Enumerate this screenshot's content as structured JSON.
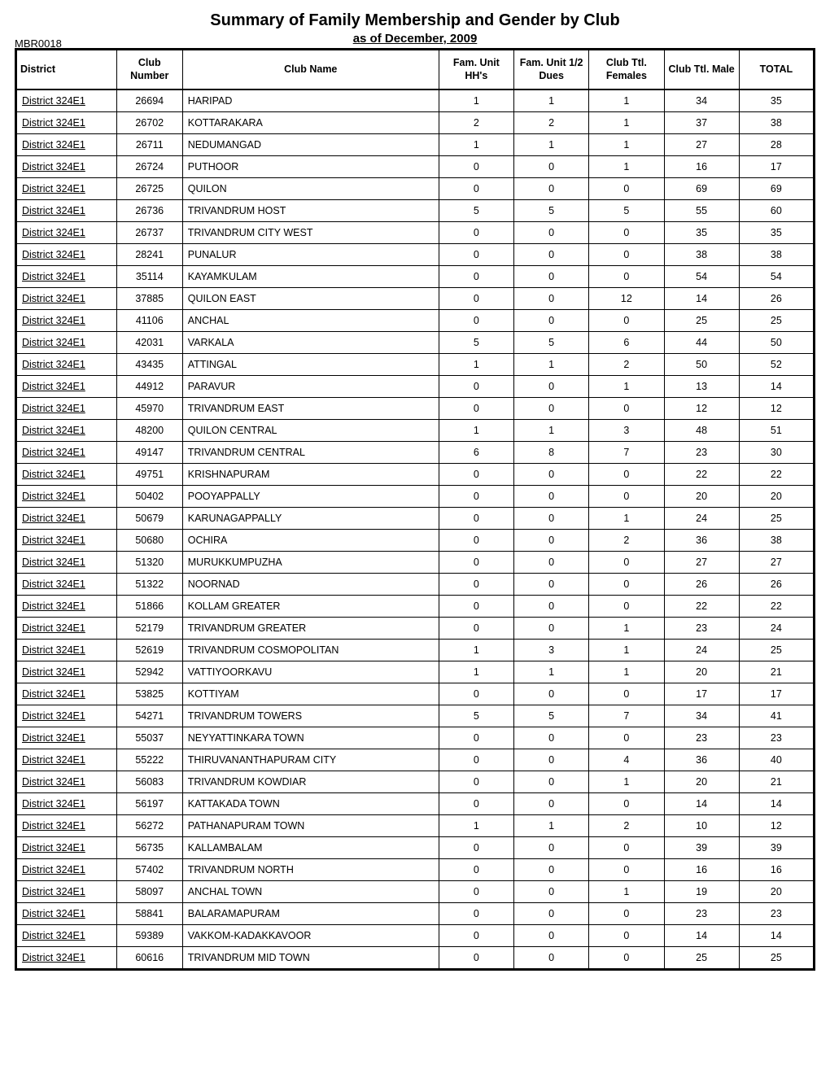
{
  "report": {
    "title": "Summary of Family Membership and Gender by Club",
    "id": "MBR0018",
    "as_of": "as of December, 2009"
  },
  "table": {
    "columns": [
      "District",
      "Club Number",
      "Club Name",
      "Fam. Unit HH's",
      "Fam. Unit 1/2 Dues",
      "Club Ttl. Females",
      "Club Ttl. Male",
      "TOTAL"
    ],
    "rows": [
      [
        "District 324E1",
        "26694",
        "HARIPAD",
        "1",
        "1",
        "1",
        "34",
        "35"
      ],
      [
        "District 324E1",
        "26702",
        "KOTTARAKARA",
        "2",
        "2",
        "1",
        "37",
        "38"
      ],
      [
        "District 324E1",
        "26711",
        "NEDUMANGAD",
        "1",
        "1",
        "1",
        "27",
        "28"
      ],
      [
        "District 324E1",
        "26724",
        "PUTHOOR",
        "0",
        "0",
        "1",
        "16",
        "17"
      ],
      [
        "District 324E1",
        "26725",
        "QUILON",
        "0",
        "0",
        "0",
        "69",
        "69"
      ],
      [
        "District 324E1",
        "26736",
        "TRIVANDRUM HOST",
        "5",
        "5",
        "5",
        "55",
        "60"
      ],
      [
        "District 324E1",
        "26737",
        "TRIVANDRUM CITY WEST",
        "0",
        "0",
        "0",
        "35",
        "35"
      ],
      [
        "District 324E1",
        "28241",
        "PUNALUR",
        "0",
        "0",
        "0",
        "38",
        "38"
      ],
      [
        "District 324E1",
        "35114",
        "KAYAMKULAM",
        "0",
        "0",
        "0",
        "54",
        "54"
      ],
      [
        "District 324E1",
        "37885",
        "QUILON EAST",
        "0",
        "0",
        "12",
        "14",
        "26"
      ],
      [
        "District 324E1",
        "41106",
        "ANCHAL",
        "0",
        "0",
        "0",
        "25",
        "25"
      ],
      [
        "District 324E1",
        "42031",
        "VARKALA",
        "5",
        "5",
        "6",
        "44",
        "50"
      ],
      [
        "District 324E1",
        "43435",
        "ATTINGAL",
        "1",
        "1",
        "2",
        "50",
        "52"
      ],
      [
        "District 324E1",
        "44912",
        "PARAVUR",
        "0",
        "0",
        "1",
        "13",
        "14"
      ],
      [
        "District 324E1",
        "45970",
        "TRIVANDRUM EAST",
        "0",
        "0",
        "0",
        "12",
        "12"
      ],
      [
        "District 324E1",
        "48200",
        "QUILON CENTRAL",
        "1",
        "1",
        "3",
        "48",
        "51"
      ],
      [
        "District 324E1",
        "49147",
        "TRIVANDRUM CENTRAL",
        "6",
        "8",
        "7",
        "23",
        "30"
      ],
      [
        "District 324E1",
        "49751",
        "KRISHNAPURAM",
        "0",
        "0",
        "0",
        "22",
        "22"
      ],
      [
        "District 324E1",
        "50402",
        "POOYAPPALLY",
        "0",
        "0",
        "0",
        "20",
        "20"
      ],
      [
        "District 324E1",
        "50679",
        "KARUNAGAPPALLY",
        "0",
        "0",
        "1",
        "24",
        "25"
      ],
      [
        "District 324E1",
        "50680",
        "OCHIRA",
        "0",
        "0",
        "2",
        "36",
        "38"
      ],
      [
        "District 324E1",
        "51320",
        "MURUKKUMPUZHA",
        "0",
        "0",
        "0",
        "27",
        "27"
      ],
      [
        "District 324E1",
        "51322",
        "NOORNAD",
        "0",
        "0",
        "0",
        "26",
        "26"
      ],
      [
        "District 324E1",
        "51866",
        "KOLLAM GREATER",
        "0",
        "0",
        "0",
        "22",
        "22"
      ],
      [
        "District 324E1",
        "52179",
        "TRIVANDRUM GREATER",
        "0",
        "0",
        "1",
        "23",
        "24"
      ],
      [
        "District 324E1",
        "52619",
        "TRIVANDRUM COSMOPOLITAN",
        "1",
        "3",
        "1",
        "24",
        "25"
      ],
      [
        "District 324E1",
        "52942",
        "VATTIYOORKAVU",
        "1",
        "1",
        "1",
        "20",
        "21"
      ],
      [
        "District 324E1",
        "53825",
        "KOTTIYAM",
        "0",
        "0",
        "0",
        "17",
        "17"
      ],
      [
        "District 324E1",
        "54271",
        "TRIVANDRUM TOWERS",
        "5",
        "5",
        "7",
        "34",
        "41"
      ],
      [
        "District 324E1",
        "55037",
        "NEYYATTINKARA TOWN",
        "0",
        "0",
        "0",
        "23",
        "23"
      ],
      [
        "District 324E1",
        "55222",
        "THIRUVANANTHAPURAM CITY",
        "0",
        "0",
        "4",
        "36",
        "40"
      ],
      [
        "District 324E1",
        "56083",
        "TRIVANDRUM KOWDIAR",
        "0",
        "0",
        "1",
        "20",
        "21"
      ],
      [
        "District 324E1",
        "56197",
        "KATTAKADA TOWN",
        "0",
        "0",
        "0",
        "14",
        "14"
      ],
      [
        "District 324E1",
        "56272",
        "PATHANAPURAM TOWN",
        "1",
        "1",
        "2",
        "10",
        "12"
      ],
      [
        "District 324E1",
        "56735",
        "KALLAMBALAM",
        "0",
        "0",
        "0",
        "39",
        "39"
      ],
      [
        "District 324E1",
        "57402",
        "TRIVANDRUM NORTH",
        "0",
        "0",
        "0",
        "16",
        "16"
      ],
      [
        "District 324E1",
        "58097",
        "ANCHAL TOWN",
        "0",
        "0",
        "1",
        "19",
        "20"
      ],
      [
        "District 324E1",
        "58841",
        "BALARAMAPURAM",
        "0",
        "0",
        "0",
        "23",
        "23"
      ],
      [
        "District 324E1",
        "59389",
        "VAKKOM-KADAKKAVOOR",
        "0",
        "0",
        "0",
        "14",
        "14"
      ],
      [
        "District 324E1",
        "60616",
        "TRIVANDRUM MID TOWN",
        "0",
        "0",
        "0",
        "25",
        "25"
      ]
    ]
  }
}
